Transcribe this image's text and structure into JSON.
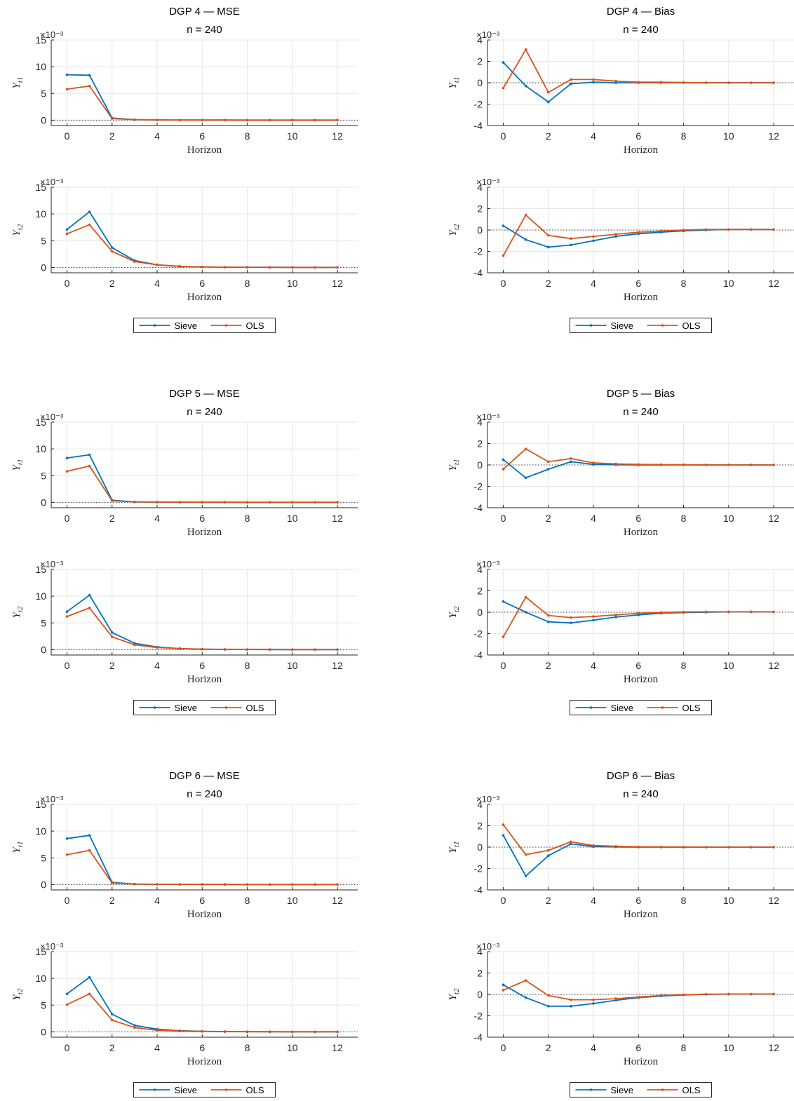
{
  "colors": {
    "sieve": "#0072BD",
    "ols": "#D95319",
    "grid": "#e6e6e6",
    "axis": "#262626",
    "zero_line": "#404040"
  },
  "legend": {
    "entries": [
      "Sieve",
      "OLS"
    ]
  },
  "chart_data": [
    {
      "block": "DGP 4",
      "title": "DGP 4  —  MSE",
      "subtitle": "n = 240",
      "type": "line",
      "panels": [
        {
          "ylabel": "Y",
          "ylabel_sub": "t1",
          "ylim": [
            -1,
            15
          ],
          "yticks": [
            0,
            5,
            10,
            15
          ],
          "exponent": "×10⁻³",
          "xlabel": "Horizon",
          "xlim": [
            -0.7,
            12.9
          ],
          "xticks": [
            0,
            2,
            4,
            6,
            8,
            10,
            12
          ],
          "x": [
            0,
            1,
            2,
            3,
            4,
            5,
            6,
            7,
            8,
            9,
            10,
            11,
            12
          ],
          "series": [
            {
              "name": "Sieve",
              "values": [
                8.5,
                8.4,
                0.4,
                0.1,
                0.05,
                0.03,
                0.02,
                0.02,
                0.01,
                0.01,
                0.01,
                0.01,
                0.01
              ]
            },
            {
              "name": "OLS",
              "values": [
                5.8,
                6.4,
                0.3,
                0.1,
                0.05,
                0.03,
                0.02,
                0.02,
                0.01,
                0.01,
                0.01,
                0.01,
                0.01
              ]
            }
          ]
        },
        {
          "ylabel": "Y",
          "ylabel_sub": "t2",
          "ylim": [
            -1,
            15
          ],
          "yticks": [
            0,
            5,
            10,
            15
          ],
          "exponent": "×10⁻³",
          "xlabel": "Horizon",
          "xlim": [
            -0.7,
            12.9
          ],
          "xticks": [
            0,
            2,
            4,
            6,
            8,
            10,
            12
          ],
          "x": [
            0,
            1,
            2,
            3,
            4,
            5,
            6,
            7,
            8,
            9,
            10,
            11,
            12
          ],
          "series": [
            {
              "name": "Sieve",
              "values": [
                7.1,
                10.4,
                3.7,
                1.3,
                0.5,
                0.2,
                0.1,
                0.05,
                0.03,
                0.02,
                0.01,
                0.01,
                0.01
              ]
            },
            {
              "name": "OLS",
              "values": [
                6.3,
                8.0,
                3.0,
                1.1,
                0.5,
                0.2,
                0.1,
                0.05,
                0.03,
                0.02,
                0.01,
                0.01,
                0.01
              ]
            }
          ]
        }
      ]
    },
    {
      "block": "DGP 4",
      "title": "DGP 4  —  Bias",
      "subtitle": "n = 240",
      "type": "line",
      "panels": [
        {
          "ylabel": "Y",
          "ylabel_sub": "t1",
          "ylim": [
            -4,
            4
          ],
          "yticks": [
            -4,
            -2,
            0,
            2,
            4
          ],
          "exponent": "×10⁻³",
          "xlabel": "Horizon",
          "xlim": [
            -0.7,
            12.9
          ],
          "xticks": [
            0,
            2,
            4,
            6,
            8,
            10,
            12
          ],
          "x": [
            0,
            1,
            2,
            3,
            4,
            5,
            6,
            7,
            8,
            9,
            10,
            11,
            12
          ],
          "series": [
            {
              "name": "Sieve",
              "values": [
                1.9,
                -0.3,
                -1.8,
                -0.1,
                0.05,
                0.0,
                0.0,
                0.0,
                0.0,
                0.0,
                0.0,
                0.0,
                0.0
              ]
            },
            {
              "name": "OLS",
              "values": [
                -0.5,
                3.1,
                -0.9,
                0.3,
                0.3,
                0.15,
                0.05,
                0.05,
                0.02,
                0.0,
                0.0,
                0.0,
                0.0
              ]
            }
          ]
        },
        {
          "ylabel": "Y",
          "ylabel_sub": "t2",
          "ylim": [
            -4,
            4
          ],
          "yticks": [
            -4,
            -2,
            0,
            2,
            4
          ],
          "exponent": "×10⁻³",
          "xlabel": "Horizon",
          "xlim": [
            -0.7,
            12.9
          ],
          "xticks": [
            0,
            2,
            4,
            6,
            8,
            10,
            12
          ],
          "x": [
            0,
            1,
            2,
            3,
            4,
            5,
            6,
            7,
            8,
            9,
            10,
            11,
            12
          ],
          "series": [
            {
              "name": "Sieve",
              "values": [
                0.4,
                -0.9,
                -1.6,
                -1.4,
                -1.0,
                -0.6,
                -0.35,
                -0.2,
                -0.08,
                0.0,
                0.05,
                0.05,
                0.05
              ]
            },
            {
              "name": "OLS",
              "values": [
                -2.4,
                1.4,
                -0.5,
                -0.8,
                -0.6,
                -0.4,
                -0.2,
                -0.1,
                0.0,
                0.05,
                0.05,
                0.05,
                0.05
              ]
            }
          ]
        }
      ]
    },
    {
      "block": "DGP 5",
      "title": "DGP 5  —  MSE",
      "subtitle": "n = 240",
      "type": "line",
      "panels": [
        {
          "ylabel": "Y",
          "ylabel_sub": "t1",
          "ylim": [
            -1,
            15
          ],
          "yticks": [
            0,
            5,
            10,
            15
          ],
          "exponent": "×10⁻³",
          "xlabel": "Horizon",
          "xlim": [
            -0.7,
            12.9
          ],
          "xticks": [
            0,
            2,
            4,
            6,
            8,
            10,
            12
          ],
          "x": [
            0,
            1,
            2,
            3,
            4,
            5,
            6,
            7,
            8,
            9,
            10,
            11,
            12
          ],
          "series": [
            {
              "name": "Sieve",
              "values": [
                8.3,
                8.9,
                0.4,
                0.1,
                0.05,
                0.03,
                0.02,
                0.02,
                0.01,
                0.01,
                0.01,
                0.01,
                0.01
              ]
            },
            {
              "name": "OLS",
              "values": [
                5.8,
                6.8,
                0.3,
                0.1,
                0.05,
                0.03,
                0.02,
                0.02,
                0.01,
                0.01,
                0.01,
                0.01,
                0.01
              ]
            }
          ]
        },
        {
          "ylabel": "Y",
          "ylabel_sub": "t2",
          "ylim": [
            -1,
            15
          ],
          "yticks": [
            0,
            5,
            10,
            15
          ],
          "exponent": "×10⁻³",
          "xlabel": "Horizon",
          "xlim": [
            -0.7,
            12.9
          ],
          "xticks": [
            0,
            2,
            4,
            6,
            8,
            10,
            12
          ],
          "x": [
            0,
            1,
            2,
            3,
            4,
            5,
            6,
            7,
            8,
            9,
            10,
            11,
            12
          ],
          "series": [
            {
              "name": "Sieve",
              "values": [
                7.1,
                10.2,
                3.2,
                1.2,
                0.5,
                0.2,
                0.1,
                0.05,
                0.03,
                0.02,
                0.01,
                0.01,
                0.01
              ]
            },
            {
              "name": "OLS",
              "values": [
                6.2,
                7.8,
                2.4,
                0.9,
                0.4,
                0.2,
                0.1,
                0.05,
                0.03,
                0.02,
                0.01,
                0.01,
                0.01
              ]
            }
          ]
        }
      ]
    },
    {
      "block": "DGP 5",
      "title": "DGP 5  —  Bias",
      "subtitle": "n = 240",
      "type": "line",
      "panels": [
        {
          "ylabel": "Y",
          "ylabel_sub": "t1",
          "ylim": [
            -4,
            4
          ],
          "yticks": [
            -4,
            -2,
            0,
            2,
            4
          ],
          "exponent": "×10⁻³",
          "xlabel": "Horizon",
          "xlim": [
            -0.7,
            12.9
          ],
          "xticks": [
            0,
            2,
            4,
            6,
            8,
            10,
            12
          ],
          "x": [
            0,
            1,
            2,
            3,
            4,
            5,
            6,
            7,
            8,
            9,
            10,
            11,
            12
          ],
          "series": [
            {
              "name": "Sieve",
              "values": [
                0.5,
                -1.2,
                -0.4,
                0.3,
                0.05,
                0.02,
                0.0,
                0.0,
                0.0,
                0.0,
                0.0,
                0.0,
                0.0
              ]
            },
            {
              "name": "OLS",
              "values": [
                -0.4,
                1.5,
                0.3,
                0.6,
                0.2,
                0.1,
                0.05,
                0.03,
                0.02,
                0.0,
                0.0,
                0.0,
                0.0
              ]
            }
          ]
        },
        {
          "ylabel": "Y",
          "ylabel_sub": "t2",
          "ylim": [
            -4,
            4
          ],
          "yticks": [
            -4,
            -2,
            0,
            2,
            4
          ],
          "exponent": "×10⁻³",
          "xlabel": "Horizon",
          "xlim": [
            -0.7,
            12.9
          ],
          "xticks": [
            0,
            2,
            4,
            6,
            8,
            10,
            12
          ],
          "x": [
            0,
            1,
            2,
            3,
            4,
            5,
            6,
            7,
            8,
            9,
            10,
            11,
            12
          ],
          "series": [
            {
              "name": "Sieve",
              "values": [
                1.0,
                0.0,
                -0.9,
                -1.0,
                -0.75,
                -0.45,
                -0.25,
                -0.1,
                -0.03,
                0.0,
                0.03,
                0.03,
                0.03
              ]
            },
            {
              "name": "OLS",
              "values": [
                -2.3,
                1.4,
                -0.3,
                -0.5,
                -0.4,
                -0.25,
                -0.1,
                -0.02,
                0.02,
                0.04,
                0.04,
                0.04,
                0.03
              ]
            }
          ]
        }
      ]
    },
    {
      "block": "DGP 6",
      "title": "DGP 6  —  MSE",
      "subtitle": "n = 240",
      "type": "line",
      "panels": [
        {
          "ylabel": "Y",
          "ylabel_sub": "t1",
          "ylim": [
            -1,
            15
          ],
          "yticks": [
            0,
            5,
            10,
            15
          ],
          "exponent": "×10⁻³",
          "xlabel": "Horizon",
          "xlim": [
            -0.7,
            12.9
          ],
          "xticks": [
            0,
            2,
            4,
            6,
            8,
            10,
            12
          ],
          "x": [
            0,
            1,
            2,
            3,
            4,
            5,
            6,
            7,
            8,
            9,
            10,
            11,
            12
          ],
          "series": [
            {
              "name": "Sieve",
              "values": [
                8.6,
                9.2,
                0.4,
                0.1,
                0.05,
                0.03,
                0.02,
                0.02,
                0.01,
                0.01,
                0.01,
                0.01,
                0.01
              ]
            },
            {
              "name": "OLS",
              "values": [
                5.6,
                6.4,
                0.3,
                0.1,
                0.05,
                0.03,
                0.02,
                0.02,
                0.01,
                0.01,
                0.01,
                0.01,
                0.01
              ]
            }
          ]
        },
        {
          "ylabel": "Y",
          "ylabel_sub": "t2",
          "ylim": [
            -1,
            15
          ],
          "yticks": [
            0,
            5,
            10,
            15
          ],
          "exponent": "×10⁻³",
          "xlabel": "Horizon",
          "xlim": [
            -0.7,
            12.9
          ],
          "xticks": [
            0,
            2,
            4,
            6,
            8,
            10,
            12
          ],
          "x": [
            0,
            1,
            2,
            3,
            4,
            5,
            6,
            7,
            8,
            9,
            10,
            11,
            12
          ],
          "series": [
            {
              "name": "Sieve",
              "values": [
                7.1,
                10.2,
                3.3,
                1.2,
                0.5,
                0.2,
                0.1,
                0.05,
                0.03,
                0.02,
                0.01,
                0.01,
                0.01
              ]
            },
            {
              "name": "OLS",
              "values": [
                5.1,
                7.1,
                2.2,
                0.8,
                0.3,
                0.15,
                0.08,
                0.04,
                0.02,
                0.01,
                0.01,
                0.01,
                0.01
              ]
            }
          ]
        }
      ]
    },
    {
      "block": "DGP 6",
      "title": "DGP 6  —  Bias",
      "subtitle": "n = 240",
      "type": "line",
      "panels": [
        {
          "ylabel": "Y",
          "ylabel_sub": "t1",
          "ylim": [
            -4,
            4
          ],
          "yticks": [
            -4,
            -2,
            0,
            2,
            4
          ],
          "exponent": "×10⁻³",
          "xlabel": "Horizon",
          "xlim": [
            -0.7,
            12.9
          ],
          "xticks": [
            0,
            2,
            4,
            6,
            8,
            10,
            12
          ],
          "x": [
            0,
            1,
            2,
            3,
            4,
            5,
            6,
            7,
            8,
            9,
            10,
            11,
            12
          ],
          "series": [
            {
              "name": "Sieve",
              "values": [
                1.1,
                -2.7,
                -0.8,
                0.3,
                0.05,
                0.02,
                0.0,
                0.0,
                0.0,
                0.0,
                0.0,
                0.0,
                0.0
              ]
            },
            {
              "name": "OLS",
              "values": [
                2.1,
                -0.7,
                -0.3,
                0.5,
                0.15,
                0.08,
                0.03,
                0.02,
                0.01,
                0.0,
                0.0,
                0.0,
                0.0
              ]
            }
          ]
        },
        {
          "ylabel": "Y",
          "ylabel_sub": "t2",
          "ylim": [
            -4,
            4
          ],
          "yticks": [
            -4,
            -2,
            0,
            2,
            4
          ],
          "exponent": "×10⁻³",
          "xlabel": "Horizon",
          "xlim": [
            -0.7,
            12.9
          ],
          "xticks": [
            0,
            2,
            4,
            6,
            8,
            10,
            12
          ],
          "x": [
            0,
            1,
            2,
            3,
            4,
            5,
            6,
            7,
            8,
            9,
            10,
            11,
            12
          ],
          "series": [
            {
              "name": "Sieve",
              "values": [
                0.9,
                -0.3,
                -1.1,
                -1.1,
                -0.85,
                -0.55,
                -0.3,
                -0.15,
                -0.05,
                0.0,
                0.03,
                0.03,
                0.03
              ]
            },
            {
              "name": "OLS",
              "values": [
                0.4,
                1.3,
                -0.1,
                -0.5,
                -0.5,
                -0.4,
                -0.25,
                -0.1,
                -0.03,
                0.02,
                0.03,
                0.03,
                0.03
              ]
            }
          ]
        }
      ]
    }
  ]
}
